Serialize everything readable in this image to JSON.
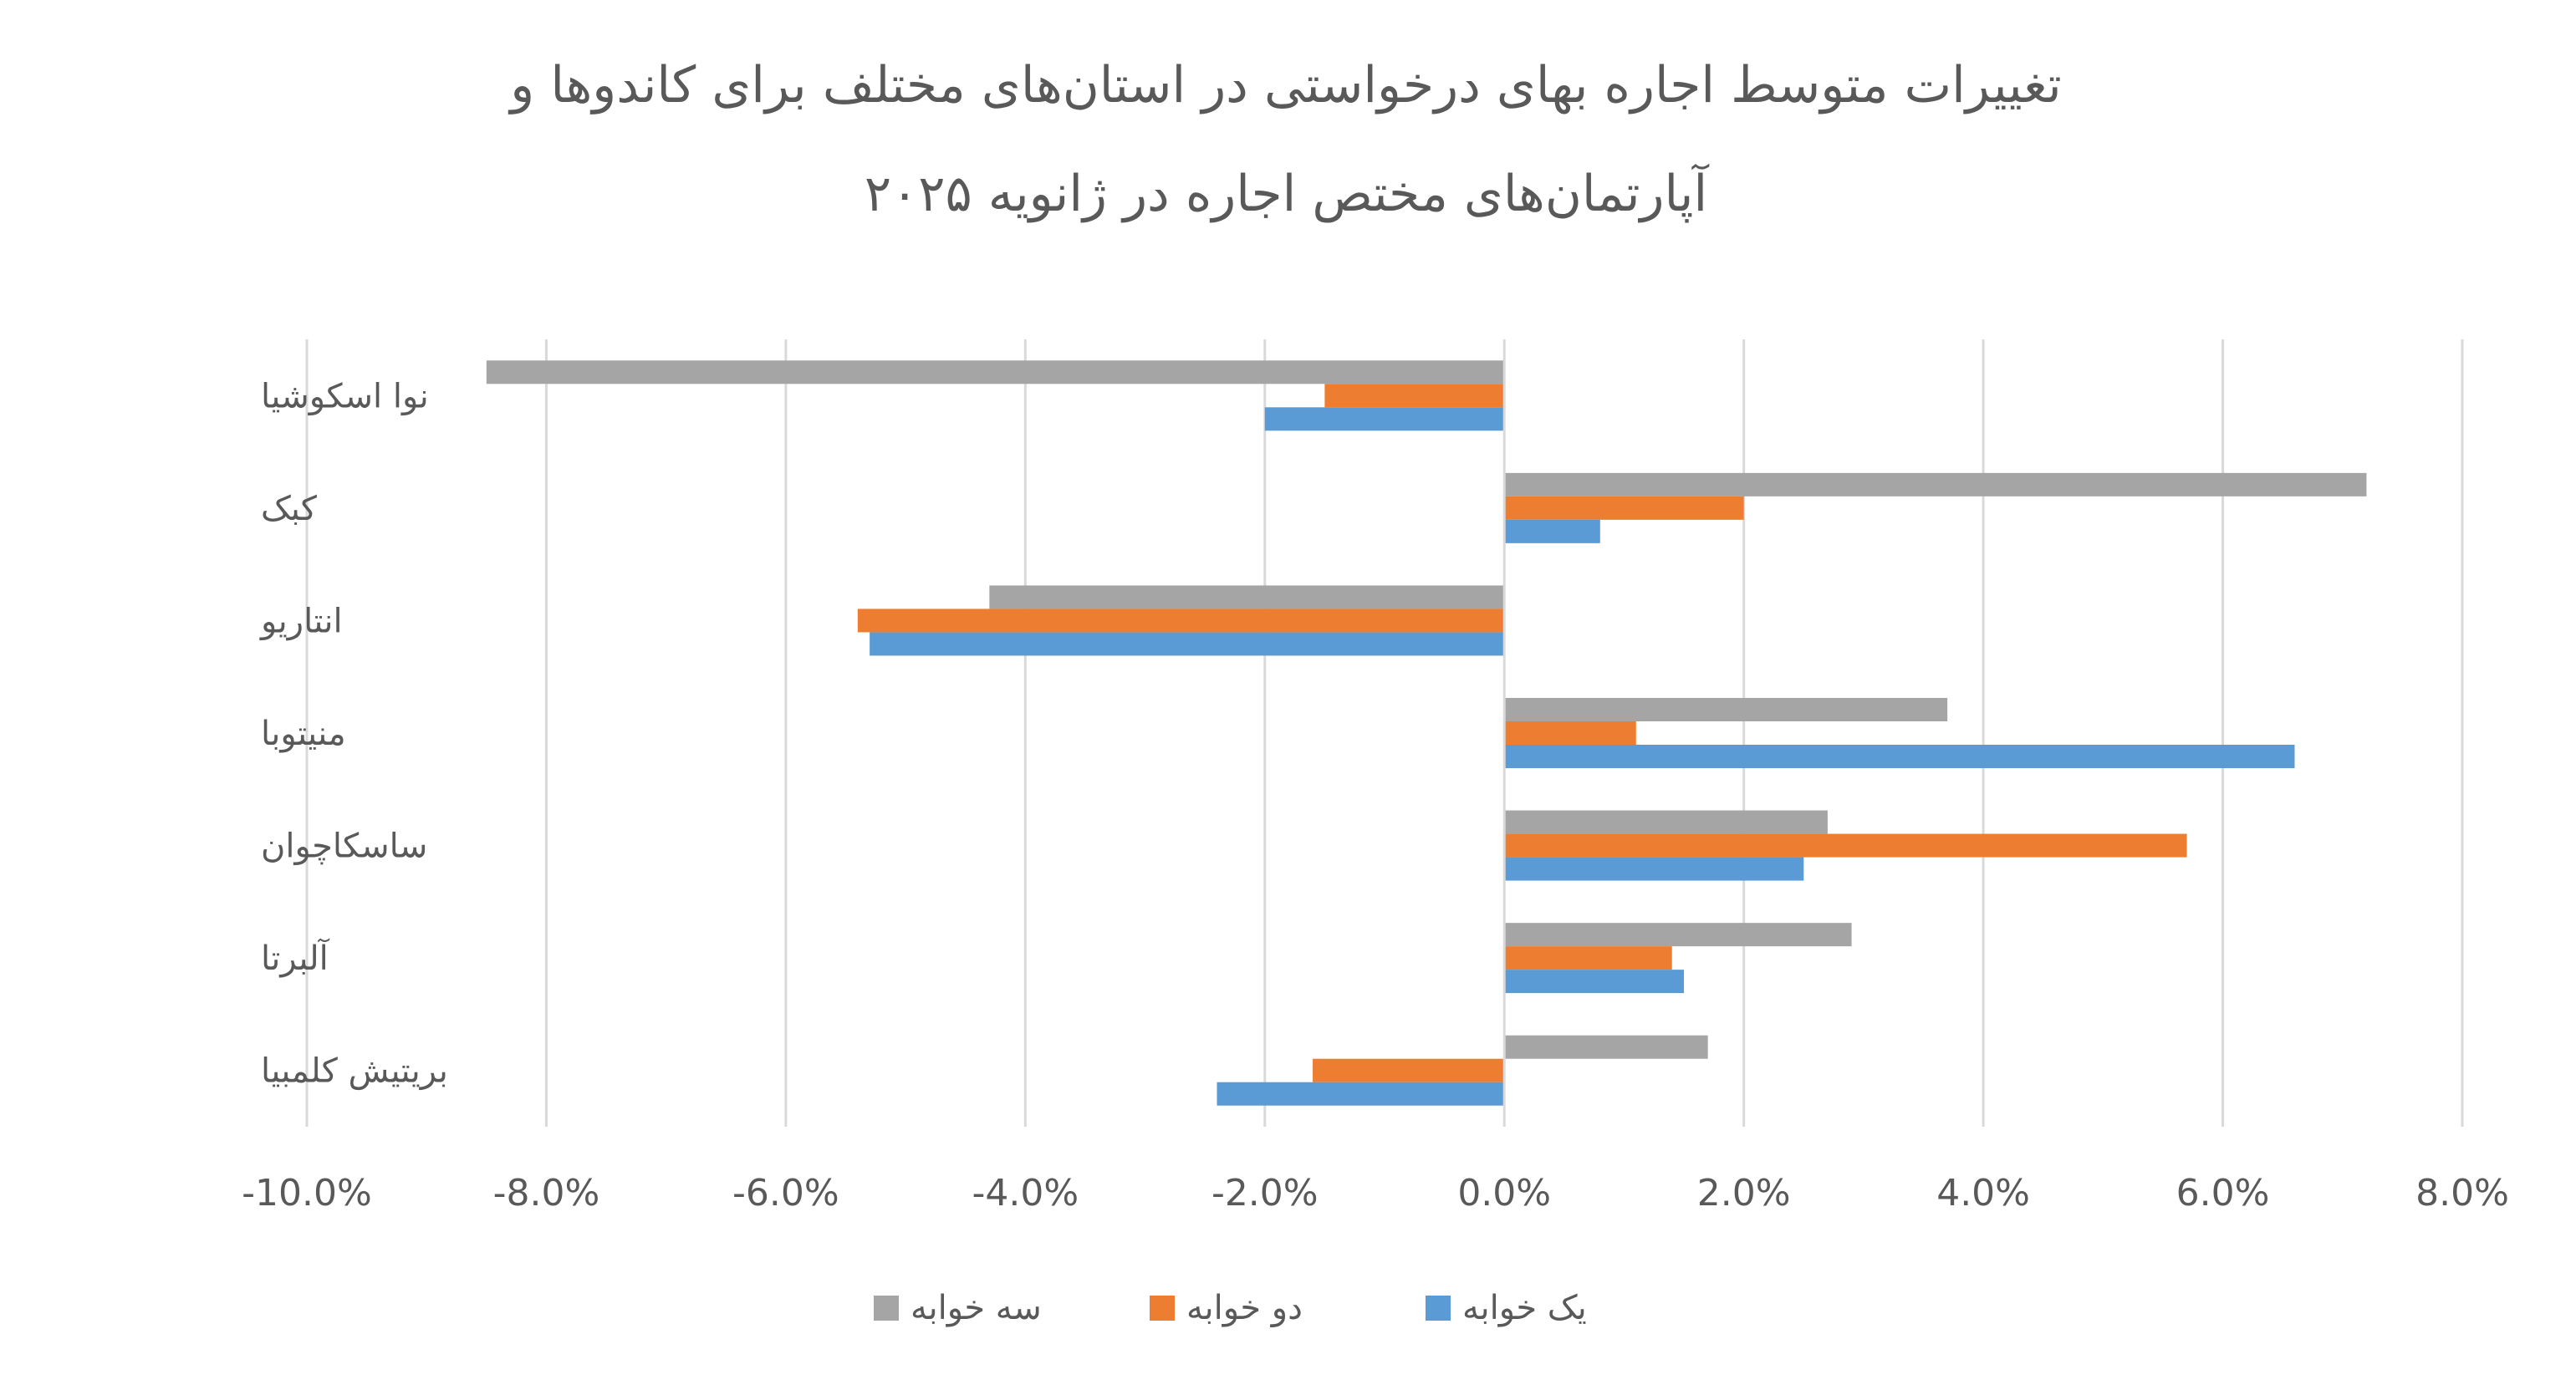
{
  "chart_data": {
    "type": "bar",
    "orientation": "horizontal",
    "title_lines": [
      "تغییرات متوسط اجاره بهای درخواستی در استان‌های مختلف برای کاندوها و",
      "آپارتمان‌های مختص اجاره در ژانویه ۲۰۲۵"
    ],
    "categories": [
      "نوا اسکوشیا",
      "کبک",
      "انتاریو",
      "منیتوبا",
      "ساسکاچوان",
      "آلبرتا",
      "بریتیش کلمبیا"
    ],
    "series": [
      {
        "name": "سه خوابه",
        "color": "#A5A5A5",
        "values": [
          -8.5,
          7.2,
          -4.3,
          3.7,
          2.7,
          2.9,
          1.7
        ]
      },
      {
        "name": "دو خوابه",
        "color": "#ED7D31",
        "values": [
          -1.5,
          2.0,
          -5.4,
          1.1,
          5.7,
          1.4,
          -1.6
        ]
      },
      {
        "name": "یک خوابه",
        "color": "#5B9BD5",
        "values": [
          -2.0,
          0.8,
          -5.3,
          6.6,
          2.5,
          1.5,
          -2.4
        ]
      }
    ],
    "xlim": [
      -10,
      8
    ],
    "x_ticks": [
      -10,
      -8,
      -6,
      -4,
      -2,
      0,
      2,
      4,
      6,
      8
    ],
    "x_tick_labels": [
      "-10.0%",
      "-8.0%",
      "-6.0%",
      "-4.0%",
      "-2.0%",
      "0.0%",
      "2.0%",
      "4.0%",
      "6.0%",
      "8.0%"
    ],
    "grid": true,
    "legend_position": "bottom",
    "legend_order": [
      "سه خوابه",
      "دو خوابه",
      "یک خوابه"
    ]
  }
}
